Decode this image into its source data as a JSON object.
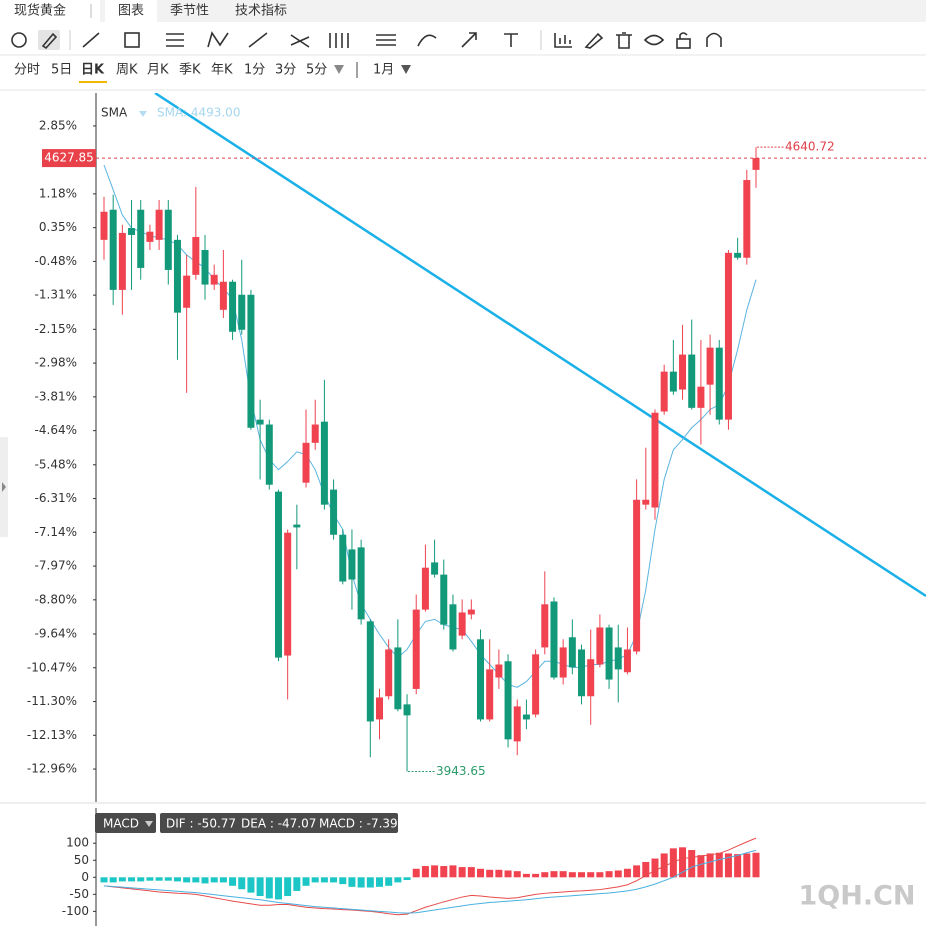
{
  "header": {
    "title": "现货黄金",
    "tabs": [
      "图表",
      "季节性",
      "技术指标"
    ]
  },
  "timeframes": [
    "分时",
    "5日",
    "日K",
    "周K",
    "月K",
    "季K",
    "年K",
    "1分",
    "3分",
    "5分"
  ],
  "range": "1月",
  "watermark": "1QH.CN",
  "chart_data": [
    {
      "type": "candlestick",
      "indicator": "SMA",
      "indicator_label": "SMA: 4493.00",
      "last_label": "4627.85",
      "high_label": "4640.72",
      "low_label": "3943.65",
      "up_color": "#f0424f",
      "down_color": "#12997a",
      "ylim": [
        -13.77,
        3.66
      ],
      "yticks": [
        {
          "value": 2.85,
          "label": "2.85%"
        },
        {
          "value": 1.18,
          "label": "1.18%"
        },
        {
          "value": 0.35,
          "label": "0.35%"
        },
        {
          "value": -0.48,
          "label": "-0.48%"
        },
        {
          "value": -1.31,
          "label": "-1.31%"
        },
        {
          "value": -2.15,
          "label": "-2.15%"
        },
        {
          "value": -2.98,
          "label": "-2.98%"
        },
        {
          "value": -3.81,
          "label": "-3.81%"
        },
        {
          "value": -4.64,
          "label": "-4.64%"
        },
        {
          "value": -5.48,
          "label": "-5.48%"
        },
        {
          "value": -6.31,
          "label": "-6.31%"
        },
        {
          "value": -7.14,
          "label": "-7.14%"
        },
        {
          "value": -7.97,
          "label": "-7.97%"
        },
        {
          "value": -8.8,
          "label": "-8.80%"
        },
        {
          "value": -9.64,
          "label": "-9.64%"
        },
        {
          "value": -10.47,
          "label": "-10.47%"
        },
        {
          "value": -11.3,
          "label": "-11.30%"
        },
        {
          "value": -12.13,
          "label": "-12.13%"
        },
        {
          "value": -12.96,
          "label": "-12.96%"
        }
      ],
      "grid": false,
      "open": [
        0.05,
        0.79,
        -1.18,
        0.34,
        0.79,
        0.0,
        0.05,
        0.79,
        0.05,
        -1.62,
        -0.81,
        -0.2,
        -1.05,
        -1.67,
        -0.98,
        -1.3,
        -1.3,
        -4.37,
        -4.49,
        -6.14,
        -10.17,
        -6.95,
        -5.92,
        -4.94,
        -4.42,
        -6.09,
        -7.2,
        -7.56,
        -7.51,
        -9.33,
        -11.74,
        -11.17,
        -9.97,
        -11.37,
        -10.99,
        -9.04,
        -7.88,
        -8.18,
        -8.91,
        -9.68,
        -9.16,
        -9.77,
        -11.74,
        -10.71,
        -10.31,
        -12.28,
        -11.62,
        -11.62,
        -9.97,
        -8.84,
        -10.71,
        -9.72,
        -10.02,
        -11.17,
        -10.39,
        -9.48,
        -9.97,
        -10.58,
        -10.07,
        -6.46,
        -6.53,
        -4.17,
        -3.19,
        -3.63,
        -2.77,
        -4.08,
        -3.51,
        -2.6,
        -4.37,
        -0.27,
        -0.39,
        1.77
      ],
      "high": [
        1.11,
        1.16,
        0.42,
        1.03,
        1.03,
        0.42,
        1.03,
        1.03,
        0.17,
        -0.32,
        1.35,
        0.17,
        -0.56,
        -0.2,
        -0.93,
        -0.44,
        -1.18,
        -3.88,
        -4.37,
        -6.09,
        -7.07,
        -6.46,
        -4.12,
        -3.88,
        -3.39,
        -5.84,
        -7.07,
        -7.07,
        -7.32,
        -9.28,
        -10.99,
        -9.77,
        -9.28,
        -11.12,
        -8.67,
        -7.44,
        -7.32,
        -7.81,
        -8.67,
        -8.79,
        -8.79,
        -9.53,
        -9.77,
        -10.02,
        -10.14,
        -11.25,
        -11.25,
        -10.02,
        -8.1,
        -8.74,
        -9.77,
        -9.28,
        -9.9,
        -9.53,
        -9.16,
        -9.41,
        -9.41,
        -9.48,
        -5.84,
        -5.06,
        -4.12,
        -3.02,
        -2.41,
        -2.04,
        -1.91,
        -2.41,
        -2.28,
        -2.41,
        -0.2,
        0.1,
        1.77,
        2.33
      ],
      "low": [
        -0.44,
        -1.55,
        -1.79,
        -1.18,
        -0.93,
        -0.2,
        -0.2,
        -1.05,
        -2.9,
        -3.71,
        -0.93,
        -1.42,
        -1.18,
        -1.87,
        -2.41,
        -2.28,
        -4.62,
        -5.84,
        -6.09,
        -10.31,
        -11.25,
        -8.05,
        -6.04,
        -5.11,
        -6.58,
        -7.32,
        -8.42,
        -9.04,
        -9.41,
        -12.67,
        -12.23,
        -11.25,
        -11.54,
        -13.02,
        -11.12,
        -9.09,
        -8.25,
        -9.53,
        -10.07,
        -9.77,
        -9.28,
        -11.79,
        -11.79,
        -10.99,
        -12.43,
        -12.62,
        -11.98,
        -11.69,
        -10.14,
        -10.76,
        -10.88,
        -10.63,
        -11.37,
        -11.87,
        -10.46,
        -10.99,
        -11.32,
        -10.63,
        -10.14,
        -6.58,
        -6.83,
        -4.25,
        -3.76,
        -3.88,
        -4.12,
        -4.98,
        -4.25,
        -4.49,
        -4.62,
        -0.44,
        -0.56,
        1.33
      ],
      "close": [
        0.74,
        -1.18,
        0.22,
        0.17,
        -0.64,
        0.25,
        0.79,
        -0.69,
        -1.74,
        -0.83,
        0.12,
        -1.05,
        -0.81,
        -0.98,
        -2.21,
        -2.16,
        -4.57,
        -4.49,
        -5.97,
        -10.22,
        -7.15,
        -7.02,
        -4.94,
        -4.49,
        -6.46,
        -7.2,
        -8.35,
        -8.3,
        -9.28,
        -11.79,
        -11.2,
        -10.02,
        -11.49,
        -11.64,
        -9.04,
        -8.01,
        -8.18,
        -9.41,
        -10.02,
        -9.11,
        -9.04,
        -11.74,
        -10.51,
        -10.39,
        -12.23,
        -11.42,
        -11.74,
        -10.14,
        -8.91,
        -10.71,
        -9.97,
        -10.46,
        -11.17,
        -10.26,
        -9.48,
        -10.76,
        -10.51,
        -10.02,
        -6.34,
        -6.34,
        -4.2,
        -3.19,
        -3.68,
        -2.77,
        -4.08,
        -3.56,
        -2.6,
        -4.37,
        -0.27,
        -0.39,
        1.52,
        2.06
      ],
      "sma": {
        "color": "#5ab4e0",
        "values": [
          1.89,
          1.28,
          0.66,
          0.34,
          0.25,
          0.15,
          0.1,
          0.05,
          -0.07,
          -0.32,
          -0.49,
          -0.64,
          -0.93,
          -1.13,
          -1.42,
          -2.41,
          -3.88,
          -4.86,
          -5.35,
          -5.6,
          -5.4,
          -5.16,
          -5.23,
          -5.6,
          -6.21,
          -6.7,
          -7.07,
          -8.18,
          -8.91,
          -9.28,
          -9.65,
          -9.97,
          -10.22,
          -10.02,
          -9.65,
          -9.33,
          -9.28,
          -9.41,
          -9.48,
          -9.53,
          -9.82,
          -10.14,
          -10.39,
          -10.63,
          -10.88,
          -10.95,
          -10.81,
          -10.56,
          -10.31,
          -10.31,
          -10.39,
          -10.46,
          -10.46,
          -10.39,
          -10.39,
          -10.31,
          -10.26,
          -10.14,
          -9.65,
          -8.55,
          -7.07,
          -5.84,
          -5.11,
          -4.86,
          -4.57,
          -4.37,
          -4.12,
          -4.0,
          -3.51,
          -2.65,
          -1.67,
          -0.93
        ]
      }
    },
    {
      "type": "macd",
      "title": "MACD",
      "ylim": [
        -140,
        130
      ],
      "yticks": [
        100,
        50,
        0,
        -50,
        -100
      ],
      "grid": false,
      "series": [
        {
          "name": "DIF : -50.77",
          "type": "line",
          "color": "#e84a4a",
          "values": [
            -25,
            -28,
            -31,
            -34,
            -37,
            -40,
            -43,
            -45,
            -47,
            -48,
            -50,
            -55,
            -60,
            -65,
            -70,
            -74,
            -78,
            -82,
            -82,
            -80,
            -80,
            -84,
            -88,
            -90,
            -92,
            -93,
            -95,
            -96,
            -98,
            -100,
            -103,
            -107,
            -110,
            -108,
            -98,
            -88,
            -80,
            -72,
            -65,
            -58,
            -53,
            -55,
            -58,
            -60,
            -62,
            -60,
            -55,
            -50,
            -47,
            -45,
            -43,
            -41,
            -40,
            -38,
            -36,
            -32,
            -28,
            -22,
            -10,
            5,
            20,
            32,
            45,
            55,
            58,
            62,
            66,
            70,
            80,
            92,
            104,
            115
          ]
        },
        {
          "name": "DEA : -47.07",
          "type": "line",
          "color": "#4ab0e0",
          "values": [
            -25,
            -27,
            -29,
            -31,
            -33,
            -35,
            -37,
            -39,
            -41,
            -43,
            -45,
            -48,
            -51,
            -54,
            -57,
            -60,
            -63,
            -66,
            -70,
            -74,
            -77,
            -80,
            -83,
            -86,
            -88,
            -90,
            -92,
            -94,
            -96,
            -98,
            -100,
            -102,
            -104,
            -105,
            -104,
            -100,
            -96,
            -92,
            -88,
            -84,
            -80,
            -77,
            -74,
            -72,
            -70,
            -68,
            -66,
            -63,
            -60,
            -58,
            -56,
            -54,
            -52,
            -50,
            -48,
            -46,
            -43,
            -40,
            -35,
            -28,
            -20,
            -10,
            0,
            15,
            30,
            38,
            45,
            52,
            58,
            64,
            72,
            79
          ]
        },
        {
          "name": "MACD : -7.39",
          "type": "bar",
          "up_color": "#f0424f",
          "down_color": "#1cc6c6",
          "values": [
            -15,
            -15,
            -12,
            -12,
            -12,
            -10,
            -10,
            -10,
            -12,
            -15,
            -15,
            -18,
            -15,
            -15,
            -25,
            -35,
            -45,
            -55,
            -62,
            -65,
            -55,
            -40,
            -25,
            -15,
            -15,
            -15,
            -20,
            -28,
            -30,
            -30,
            -28,
            -25,
            -15,
            -8,
            25,
            33,
            35,
            33,
            35,
            30,
            30,
            25,
            22,
            22,
            20,
            18,
            10,
            10,
            15,
            18,
            18,
            15,
            15,
            15,
            15,
            18,
            20,
            25,
            35,
            45,
            55,
            70,
            85,
            88,
            80,
            65,
            70,
            72,
            70,
            68,
            70,
            72
          ]
        }
      ]
    }
  ]
}
